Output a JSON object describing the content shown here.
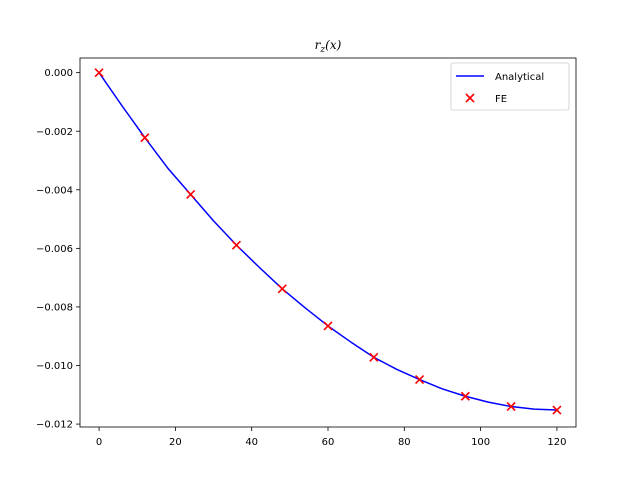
{
  "chart_data": {
    "type": "line",
    "title": "r_z(x)",
    "title_base": "r",
    "title_sub": "z",
    "title_rest": "(x)",
    "xlabel": "",
    "ylabel": "",
    "xlim": [
      -5.0,
      125.0
    ],
    "ylim": [
      -0.0121,
      0.0005
    ],
    "xticks": [
      0,
      20,
      40,
      60,
      80,
      100,
      120
    ],
    "yticks": [
      0.0,
      -0.002,
      -0.004,
      -0.006,
      -0.008,
      -0.01,
      -0.012
    ],
    "grid": false,
    "legend_position": "top-right",
    "series": [
      {
        "name": "Analytical",
        "kind": "line",
        "color": "#0000ff",
        "x": [
          0,
          6,
          12,
          18,
          24,
          30,
          36,
          42,
          48,
          54,
          60,
          66,
          72,
          78,
          84,
          90,
          96,
          102,
          108,
          114,
          120
        ],
        "y": [
          0.0,
          -0.00113,
          -0.00222,
          -0.00326,
          -0.00416,
          -0.00506,
          -0.00589,
          -0.00665,
          -0.00738,
          -0.00803,
          -0.00865,
          -0.0092,
          -0.00972,
          -0.01013,
          -0.01048,
          -0.0108,
          -0.01105,
          -0.01125,
          -0.0114,
          -0.01149,
          -0.01152
        ]
      },
      {
        "name": "FE",
        "kind": "scatter",
        "marker": "x",
        "color": "#ff0000",
        "x": [
          0,
          12,
          24,
          36,
          48,
          60,
          72,
          84,
          96,
          108,
          120
        ],
        "y": [
          0.0,
          -0.00222,
          -0.00416,
          -0.00589,
          -0.00738,
          -0.00865,
          -0.00972,
          -0.01048,
          -0.01105,
          -0.0114,
          -0.01152
        ]
      }
    ]
  }
}
